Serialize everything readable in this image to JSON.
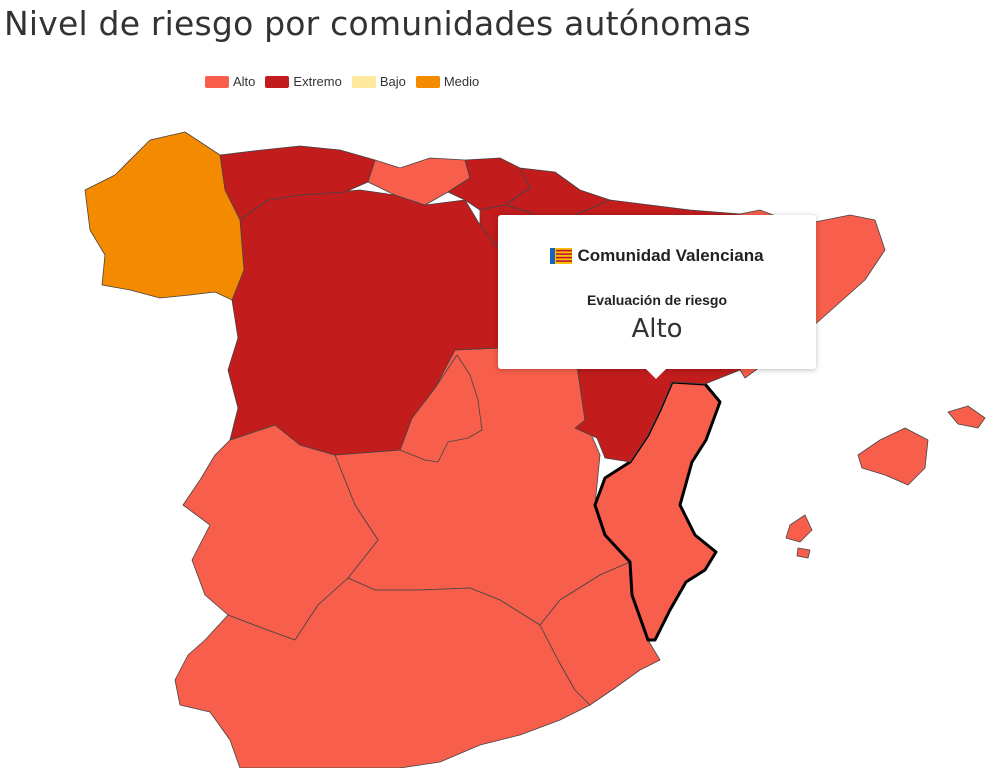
{
  "title": "Nivel de riesgo por comunidades autónomas",
  "legend": [
    {
      "label": "Alto",
      "color": "#f75e4b"
    },
    {
      "label": "Extremo",
      "color": "#c21c1d"
    },
    {
      "label": "Bajo",
      "color": "#fde89d"
    },
    {
      "label": "Medio",
      "color": "#f48a00"
    }
  ],
  "regions": [
    {
      "name": "Galicia",
      "risk": "Medio"
    },
    {
      "name": "Asturias",
      "risk": "Extremo"
    },
    {
      "name": "Cantabria",
      "risk": "Alto"
    },
    {
      "name": "País Vasco",
      "risk": "Extremo"
    },
    {
      "name": "Navarra",
      "risk": "Extremo"
    },
    {
      "name": "La Rioja",
      "risk": "Extremo"
    },
    {
      "name": "Castilla y León",
      "risk": "Extremo"
    },
    {
      "name": "Aragón",
      "risk": "Extremo"
    },
    {
      "name": "Cataluña",
      "risk": "Alto"
    },
    {
      "name": "Madrid",
      "risk": "Alto"
    },
    {
      "name": "Extremadura",
      "risk": "Alto"
    },
    {
      "name": "Castilla-La Mancha",
      "risk": "Alto"
    },
    {
      "name": "Comunidad Valenciana",
      "risk": "Alto"
    },
    {
      "name": "Región de Murcia",
      "risk": "Alto"
    },
    {
      "name": "Andalucía",
      "risk": "Alto"
    },
    {
      "name": "Illes Balears",
      "risk": "Alto"
    }
  ],
  "tooltip": {
    "region": "Comunidad Valenciana",
    "label": "Evaluación de riesgo",
    "value": "Alto",
    "flag_colors": [
      "#f3c300",
      "#c8102e",
      "#1565c0"
    ]
  },
  "colors": {
    "Alto": "#f75e4b",
    "Extremo": "#c21c1d",
    "Bajo": "#fde89d",
    "Medio": "#f48a00"
  }
}
